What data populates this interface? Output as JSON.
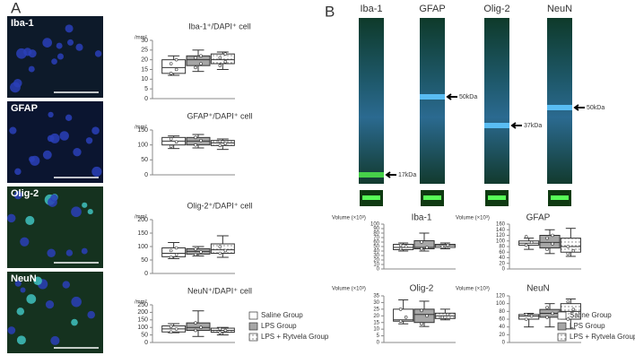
{
  "panel_labels": [
    "A",
    "B"
  ],
  "images": [
    "Iba-1",
    "GFAP",
    "Olig-2",
    "NeuN"
  ],
  "blots": [
    {
      "label": "Iba-1",
      "marker": "17kDa"
    },
    {
      "label": "GFAP",
      "marker": "50kDa"
    },
    {
      "label": "Olig-2",
      "marker": "37kDa"
    },
    {
      "label": "NeuN",
      "marker": "50kDa"
    }
  ],
  "chart_data": [
    {
      "type": "box",
      "title": "Iba-1⁺/DAPI⁺ cell",
      "y_label": "/mm²",
      "ylim": [
        0,
        30
      ],
      "yticks": [
        0,
        5,
        10,
        15,
        20,
        25,
        30
      ],
      "series": [
        {
          "color": "#ffffff",
          "min": 12,
          "q1": 13,
          "median": 16,
          "q3": 20,
          "max": 22,
          "points": [
            13,
            15,
            18,
            20
          ]
        },
        {
          "color": "#a6a6a6",
          "min": 14,
          "q1": 17,
          "median": 20,
          "q3": 22,
          "max": 25,
          "points": [
            16,
            18,
            21,
            22
          ]
        },
        {
          "color": "#ffffff",
          "pattern": "dots",
          "min": 15,
          "q1": 18,
          "median": 20,
          "q3": 23,
          "max": 24,
          "points": [
            17,
            19,
            21,
            23
          ]
        }
      ]
    },
    {
      "type": "box",
      "title": "GFAP⁺/DAPI⁺ cell",
      "y_label": "/mm²",
      "ylim": [
        0,
        150
      ],
      "yticks": [
        0,
        50,
        100,
        150
      ],
      "series": [
        {
          "color": "#ffffff",
          "min": 88,
          "q1": 100,
          "median": 113,
          "q3": 125,
          "max": 130,
          "points": [
            95,
            110,
            120
          ]
        },
        {
          "color": "#a6a6a6",
          "min": 90,
          "q1": 100,
          "median": 113,
          "q3": 125,
          "max": 135,
          "points": [
            100,
            115,
            125
          ]
        },
        {
          "color": "#ffffff",
          "pattern": "dots",
          "min": 85,
          "q1": 98,
          "median": 107,
          "q3": 115,
          "max": 120,
          "points": [
            98,
            105,
            112
          ]
        }
      ]
    },
    {
      "type": "box",
      "title": "Olig-2⁺/DAPI⁺ cell",
      "y_label": "/mm²",
      "ylim": [
        0,
        200
      ],
      "yticks": [
        0,
        50,
        100,
        150,
        200
      ],
      "series": [
        {
          "color": "#ffffff",
          "min": 55,
          "q1": 62,
          "median": 75,
          "q3": 95,
          "max": 115,
          "points": [
            60,
            70,
            85,
            95
          ]
        },
        {
          "color": "#a6a6a6",
          "min": 65,
          "q1": 72,
          "median": 82,
          "q3": 92,
          "max": 100,
          "points": [
            70,
            80,
            90
          ]
        },
        {
          "color": "#ffffff",
          "pattern": "dots",
          "min": 60,
          "q1": 75,
          "median": 88,
          "q3": 110,
          "max": 140,
          "points": [
            75,
            85,
            100
          ]
        }
      ]
    },
    {
      "type": "box",
      "title": "NeuN⁺/DAPI⁺ cell",
      "y_label": "/mm²",
      "ylim": [
        0,
        250
      ],
      "yticks": [
        0,
        50,
        100,
        150,
        200,
        250
      ],
      "series": [
        {
          "name": "Saline Group",
          "color": "#ffffff",
          "min": 65,
          "q1": 70,
          "median": 90,
          "q3": 110,
          "max": 125,
          "points": [
            70,
            90,
            105
          ]
        },
        {
          "name": "LPS Group",
          "color": "#a6a6a6",
          "min": 40,
          "q1": 80,
          "median": 100,
          "q3": 130,
          "max": 210,
          "points": [
            80,
            100,
            130
          ]
        },
        {
          "name": "LPS + Rytvela Group",
          "color": "#ffffff",
          "pattern": "dots",
          "min": 50,
          "q1": 68,
          "median": 80,
          "q3": 95,
          "max": 100,
          "points": [
            65,
            80,
            90
          ]
        }
      ]
    },
    {
      "type": "box",
      "title": "Iba-1",
      "y_label": "Volume (×10³)",
      "ylim": [
        0,
        100
      ],
      "yticks": [
        0,
        10,
        20,
        30,
        40,
        50,
        60,
        70,
        80,
        90,
        100
      ],
      "series": [
        {
          "color": "#ffffff",
          "min": 40,
          "q1": 43,
          "median": 48,
          "q3": 55,
          "max": 58,
          "points": [
            45,
            50,
            53
          ]
        },
        {
          "color": "#a6a6a6",
          "min": 40,
          "q1": 45,
          "median": 48,
          "q3": 63,
          "max": 80,
          "points": [
            45,
            48,
            60
          ]
        },
        {
          "color": "#ffffff",
          "pattern": "dots",
          "min": 45,
          "q1": 48,
          "median": 52,
          "q3": 55,
          "max": 58,
          "points": [
            50,
            53
          ]
        }
      ]
    },
    {
      "type": "box",
      "title": "GFAP",
      "y_label": "Volume (×10³)",
      "ylim": [
        0,
        160
      ],
      "yticks": [
        0,
        20,
        40,
        60,
        80,
        100,
        120,
        140,
        160
      ],
      "series": [
        {
          "color": "#ffffff",
          "min": 70,
          "q1": 85,
          "median": 92,
          "q3": 100,
          "max": 110,
          "points": [
            85,
            95,
            115
          ]
        },
        {
          "color": "#a6a6a6",
          "min": 55,
          "q1": 75,
          "median": 95,
          "q3": 120,
          "max": 140,
          "points": [
            70,
            90,
            110,
            120
          ]
        },
        {
          "color": "#ffffff",
          "pattern": "dots",
          "min": 45,
          "q1": 60,
          "median": 80,
          "q3": 110,
          "max": 145,
          "points": [
            55,
            65,
            80
          ]
        }
      ]
    },
    {
      "type": "box",
      "title": "Olig-2",
      "y_label": "Volume (×10³)",
      "ylim": [
        0,
        35
      ],
      "yticks": [
        0,
        5,
        10,
        15,
        20,
        25,
        30,
        35
      ],
      "series": [
        {
          "color": "#ffffff",
          "min": 14,
          "q1": 16,
          "median": 17,
          "q3": 25,
          "max": 32,
          "points": [
            16,
            19,
            25
          ]
        },
        {
          "color": "#a6a6a6",
          "min": 12,
          "q1": 15,
          "median": 21,
          "q3": 25,
          "max": 31,
          "points": [
            14,
            20,
            24
          ]
        },
        {
          "color": "#ffffff",
          "pattern": "dots",
          "min": 17,
          "q1": 18,
          "median": 20,
          "q3": 22,
          "max": 25,
          "points": [
            19,
            21
          ]
        }
      ]
    },
    {
      "type": "box",
      "title": "NeuN",
      "y_label": "Volume (×10³)",
      "ylim": [
        0,
        120
      ],
      "yticks": [
        0,
        20,
        40,
        60,
        80,
        100,
        120
      ],
      "series": [
        {
          "name": "Saline Group",
          "color": "#ffffff",
          "min": 40,
          "q1": 60,
          "median": 68,
          "q3": 72,
          "max": 75,
          "points": [
            60,
            68,
            72
          ]
        },
        {
          "name": "LPS Group",
          "color": "#a6a6a6",
          "min": 40,
          "q1": 65,
          "median": 75,
          "q3": 85,
          "max": 100,
          "points": [
            65,
            75,
            90
          ]
        },
        {
          "name": "LPS + Rytvela Group",
          "color": "#ffffff",
          "pattern": "dots",
          "min": 35,
          "q1": 60,
          "median": 80,
          "q3": 100,
          "max": 112,
          "points": [
            60,
            85,
            105
          ]
        }
      ]
    }
  ]
}
